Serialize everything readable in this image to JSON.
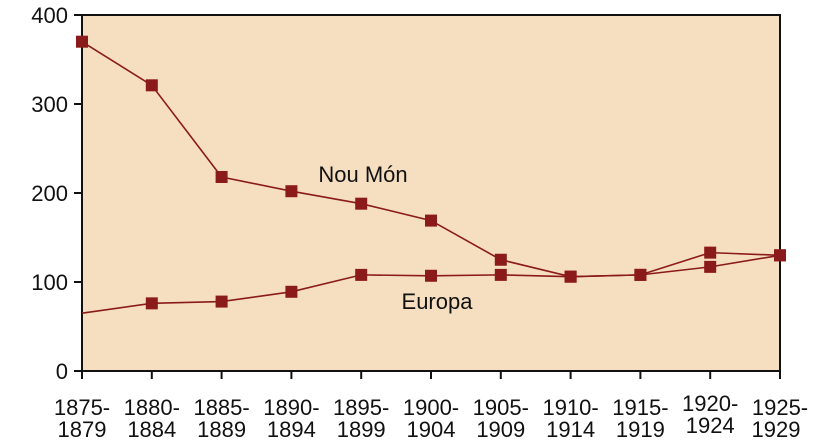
{
  "chart_data": {
    "type": "line",
    "categories": [
      "1875-1879",
      "1880-1884",
      "1885-1889",
      "1890-1894",
      "1895-1899",
      "1900-1904",
      "1905-1909",
      "1910-1914",
      "1915-1919",
      "1920-1924",
      "1925-1929"
    ],
    "series": [
      {
        "name": "Nou Món",
        "color": "#8b1a1a",
        "values": [
          370,
          321,
          218,
          202,
          188,
          169,
          125,
          106,
          108,
          133,
          130
        ]
      },
      {
        "name": "Europa",
        "color": "#8b1a1a",
        "values": [
          65,
          76,
          78,
          89,
          108,
          107,
          108,
          106,
          108,
          117,
          130
        ]
      }
    ],
    "ylim": [
      0,
      400
    ],
    "yticks": [
      0,
      100,
      200,
      300,
      400
    ],
    "background": "#f5dfc0"
  }
}
